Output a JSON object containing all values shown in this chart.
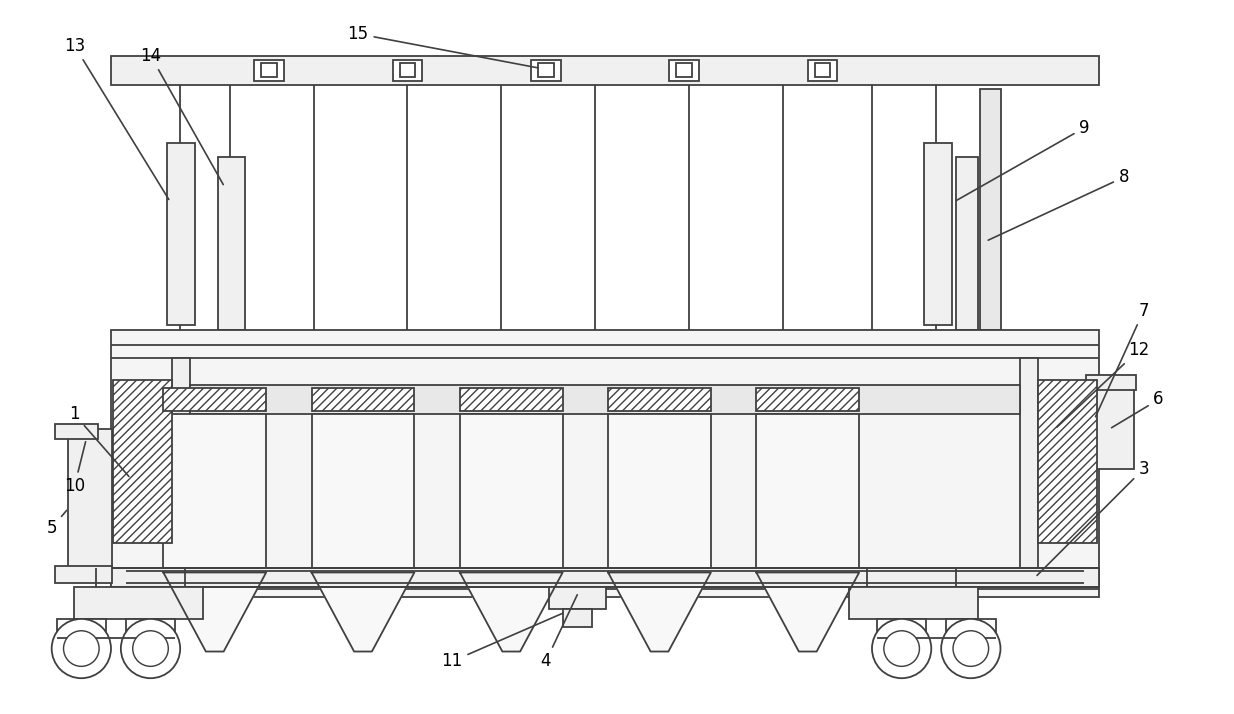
{
  "bg_color": "#ffffff",
  "line_color": "#404040",
  "lw": 1.3,
  "fig_width": 12.34,
  "fig_height": 7.14
}
